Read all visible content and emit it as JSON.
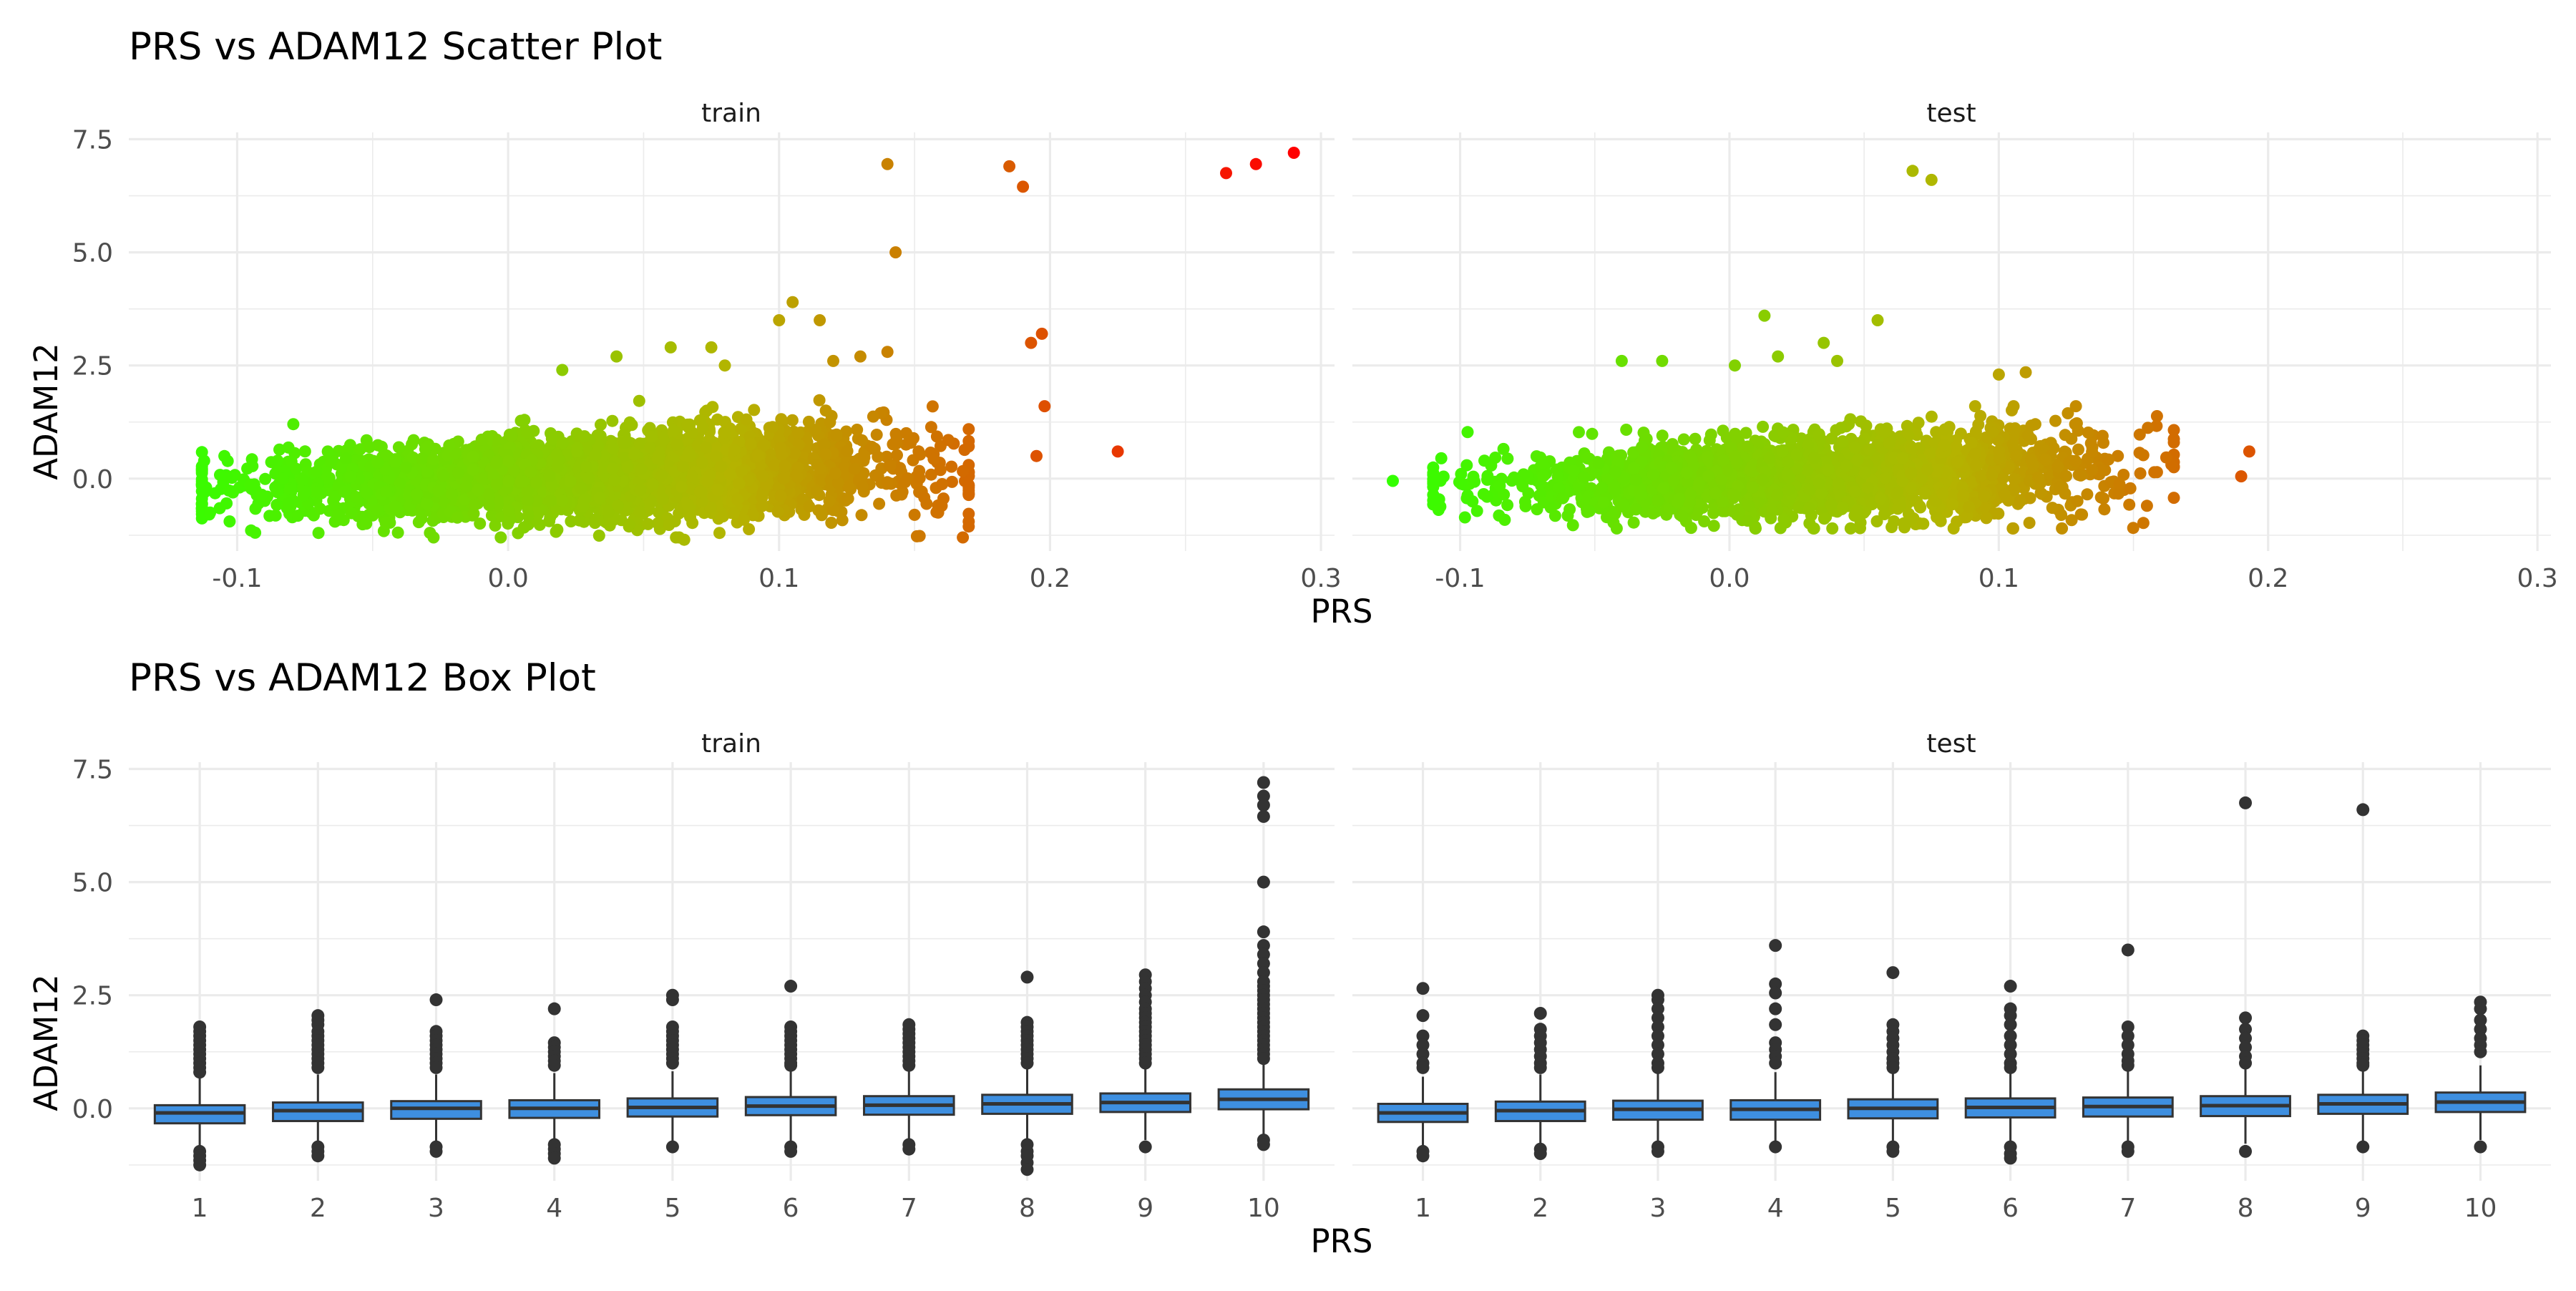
{
  "colors": {
    "low": "#33ff00",
    "mid": "#b4b400",
    "high": "#ff0000",
    "box_fill": "#3e8fe0",
    "box_line": "#333333",
    "grid": "#ebebeb"
  },
  "chart_data": [
    {
      "type": "scatter",
      "title": "PRS vs ADAM12 Scatter Plot",
      "xlabel": "PRS",
      "ylabel": "ADAM12",
      "facets": [
        "train",
        "test"
      ],
      "xlim": [
        -0.14,
        0.305
      ],
      "ylim": [
        -1.6,
        7.65
      ],
      "x_ticks": [
        -0.1,
        0.0,
        0.1,
        0.2,
        0.3
      ],
      "x_tick_labels": [
        "-0.1",
        "0.0",
        "0.1",
        "0.2",
        "0.3"
      ],
      "y_ticks": [
        0,
        2.5,
        5,
        7.5
      ],
      "y_tick_labels": [
        "0.0",
        "2.5",
        "5.0",
        "7.5"
      ],
      "color_scale": {
        "low": -0.125,
        "high": 0.29
      },
      "bulk": {
        "train": {
          "x_min": -0.113,
          "x_max": 0.17,
          "y_min": -1.3,
          "y_max": 2.0
        },
        "test": {
          "x_min": -0.11,
          "x_max": 0.165,
          "y_min": -1.1,
          "y_max": 1.6
        }
      },
      "points": {
        "train": [
          [
            0.29,
            7.2
          ],
          [
            0.276,
            6.95
          ],
          [
            0.265,
            6.75
          ],
          [
            0.14,
            6.95
          ],
          [
            0.185,
            6.9
          ],
          [
            0.19,
            6.45
          ],
          [
            0.143,
            5.0
          ],
          [
            0.197,
            3.2
          ],
          [
            0.193,
            3.0
          ],
          [
            0.198,
            1.6
          ],
          [
            0.225,
            0.6
          ],
          [
            0.195,
            0.5
          ],
          [
            0.105,
            3.9
          ],
          [
            0.1,
            3.5
          ],
          [
            0.115,
            3.5
          ],
          [
            0.14,
            2.8
          ],
          [
            0.13,
            2.7
          ],
          [
            0.075,
            2.9
          ],
          [
            0.06,
            2.9
          ],
          [
            0.04,
            2.7
          ],
          [
            0.08,
            2.5
          ],
          [
            0.02,
            2.4
          ],
          [
            0.12,
            2.6
          ],
          [
            -0.112,
            -0.3
          ],
          [
            -0.11,
            -0.75
          ],
          [
            -0.07,
            -1.2
          ],
          [
            0.065,
            -1.35
          ],
          [
            0.078,
            -1.2
          ],
          [
            0.15,
            -0.8
          ],
          [
            0.16,
            -0.6
          ]
        ],
        "test": [
          [
            -0.125,
            -0.05
          ],
          [
            -0.107,
            0.45
          ],
          [
            0.068,
            6.8
          ],
          [
            0.075,
            6.6
          ],
          [
            0.013,
            3.6
          ],
          [
            0.055,
            3.5
          ],
          [
            0.035,
            3.0
          ],
          [
            0.1,
            2.3
          ],
          [
            0.11,
            2.35
          ],
          [
            -0.04,
            2.6
          ],
          [
            -0.025,
            2.6
          ],
          [
            0.002,
            2.5
          ],
          [
            0.018,
            2.7
          ],
          [
            0.04,
            2.6
          ],
          [
            0.193,
            0.6
          ],
          [
            0.19,
            0.05
          ],
          [
            0.155,
            -0.6
          ],
          [
            0.165,
            0.8
          ],
          [
            -0.09,
            -0.4
          ],
          [
            0.065,
            -1.0
          ],
          [
            0.045,
            -1.1
          ]
        ]
      }
    },
    {
      "type": "box",
      "title": "PRS vs ADAM12 Box Plot",
      "xlabel": "PRS",
      "ylabel": "ADAM12",
      "facets": [
        "train",
        "test"
      ],
      "categories": [
        "1",
        "2",
        "3",
        "4",
        "5",
        "6",
        "7",
        "8",
        "9",
        "10"
      ],
      "ylim": [
        -1.6,
        7.65
      ],
      "y_ticks": [
        0,
        2.5,
        5,
        7.5
      ],
      "y_tick_labels": [
        "0.0",
        "2.5",
        "5.0",
        "7.5"
      ],
      "boxes": {
        "train": [
          {
            "q1": -0.33,
            "median": -0.1,
            "q3": 0.07,
            "low": -0.85,
            "high": 0.7,
            "outliers": [
              1.8,
              1.7,
              1.6,
              1.5,
              1.4,
              1.3,
              1.2,
              1.1,
              1.0,
              0.9,
              0.8,
              -0.95,
              -1.05,
              -1.15,
              -1.25
            ]
          },
          {
            "q1": -0.28,
            "median": -0.05,
            "q3": 0.13,
            "low": -0.78,
            "high": 0.75,
            "outliers": [
              2.05,
              1.95,
              1.85,
              1.7,
              1.6,
              1.5,
              1.4,
              1.3,
              1.2,
              1.1,
              1.0,
              0.9,
              -0.85,
              -0.95,
              -1.05
            ]
          },
          {
            "q1": -0.23,
            "median": 0.0,
            "q3": 0.16,
            "low": -0.8,
            "high": 0.75,
            "outliers": [
              2.4,
              1.7,
              1.6,
              1.5,
              1.4,
              1.3,
              1.2,
              1.1,
              1.0,
              0.9,
              -0.85,
              -0.95
            ]
          },
          {
            "q1": -0.21,
            "median": 0.0,
            "q3": 0.18,
            "low": -0.75,
            "high": 0.78,
            "outliers": [
              2.2,
              1.45,
              1.35,
              1.25,
              1.15,
              1.05,
              0.95,
              -0.8,
              -0.9,
              -1.0,
              -1.1
            ]
          },
          {
            "q1": -0.18,
            "median": 0.02,
            "q3": 0.22,
            "low": -0.75,
            "high": 0.82,
            "outliers": [
              2.5,
              2.4,
              1.8,
              1.7,
              1.6,
              1.5,
              1.4,
              1.3,
              1.2,
              1.1,
              1.0,
              -0.85
            ]
          },
          {
            "q1": -0.15,
            "median": 0.05,
            "q3": 0.25,
            "low": -0.75,
            "high": 0.85,
            "outliers": [
              2.7,
              1.8,
              1.7,
              1.6,
              1.5,
              1.4,
              1.3,
              1.2,
              1.1,
              1.0,
              0.95,
              -0.85,
              -0.95
            ]
          },
          {
            "q1": -0.14,
            "median": 0.07,
            "q3": 0.27,
            "low": -0.75,
            "high": 0.88,
            "outliers": [
              1.85,
              1.75,
              1.65,
              1.55,
              1.45,
              1.35,
              1.25,
              1.15,
              1.05,
              0.95,
              -0.8,
              -0.9
            ]
          },
          {
            "q1": -0.12,
            "median": 0.1,
            "q3": 0.3,
            "low": -0.72,
            "high": 0.9,
            "outliers": [
              2.9,
              1.9,
              1.8,
              1.7,
              1.6,
              1.5,
              1.4,
              1.3,
              1.2,
              1.1,
              1.0,
              -0.8,
              -0.95,
              -1.05,
              -1.2,
              -1.35
            ]
          },
          {
            "q1": -0.08,
            "median": 0.13,
            "q3": 0.33,
            "low": -0.7,
            "high": 0.93,
            "outliers": [
              2.95,
              2.8,
              2.65,
              2.5,
              2.35,
              2.2,
              2.1,
              2.0,
              1.9,
              1.8,
              1.7,
              1.6,
              1.5,
              1.4,
              1.3,
              1.2,
              1.1,
              1.0,
              -0.85
            ]
          },
          {
            "q1": -0.02,
            "median": 0.2,
            "q3": 0.42,
            "low": -0.68,
            "high": 1.05,
            "outliers": [
              7.2,
              6.9,
              6.7,
              6.45,
              5.0,
              3.9,
              3.6,
              3.4,
              3.2,
              3.0,
              2.8,
              2.7,
              2.6,
              2.5,
              2.4,
              2.3,
              2.2,
              2.1,
              2.0,
              1.9,
              1.8,
              1.7,
              1.6,
              1.5,
              1.4,
              1.3,
              1.2,
              1.1,
              -0.7,
              -0.8
            ]
          }
        ],
        "test": [
          {
            "q1": -0.3,
            "median": -0.1,
            "q3": 0.1,
            "low": -0.9,
            "high": 0.7,
            "outliers": [
              2.65,
              2.05,
              1.6,
              1.4,
              1.2,
              1.0,
              0.9,
              -0.95,
              -1.05
            ]
          },
          {
            "q1": -0.28,
            "median": -0.05,
            "q3": 0.15,
            "low": -0.85,
            "high": 0.75,
            "outliers": [
              2.1,
              1.75,
              1.6,
              1.45,
              1.3,
              1.15,
              1.0,
              0.9,
              -0.9,
              -1.0
            ]
          },
          {
            "q1": -0.25,
            "median": -0.02,
            "q3": 0.17,
            "low": -0.8,
            "high": 0.78,
            "outliers": [
              2.5,
              2.4,
              2.2,
              2.0,
              1.8,
              1.6,
              1.4,
              1.2,
              1.0,
              0.9,
              -0.85,
              -0.95
            ]
          },
          {
            "q1": -0.25,
            "median": -0.02,
            "q3": 0.18,
            "low": -0.8,
            "high": 0.8,
            "outliers": [
              3.6,
              2.75,
              2.55,
              2.2,
              1.85,
              1.45,
              1.3,
              1.15,
              1.0,
              -0.85
            ]
          },
          {
            "q1": -0.22,
            "median": 0.0,
            "q3": 0.2,
            "low": -0.8,
            "high": 0.8,
            "outliers": [
              3.0,
              1.85,
              1.7,
              1.55,
              1.4,
              1.25,
              1.1,
              1.0,
              0.9,
              -0.85,
              -0.95
            ]
          },
          {
            "q1": -0.2,
            "median": 0.02,
            "q3": 0.22,
            "low": -0.78,
            "high": 0.82,
            "outliers": [
              2.7,
              2.2,
              2.05,
              1.85,
              1.6,
              1.4,
              1.2,
              1.0,
              0.9,
              -0.85,
              -1.0,
              -1.1
            ]
          },
          {
            "q1": -0.18,
            "median": 0.04,
            "q3": 0.24,
            "low": -0.78,
            "high": 0.84,
            "outliers": [
              3.5,
              1.8,
              1.6,
              1.4,
              1.2,
              1.05,
              0.95,
              -0.85,
              -0.95
            ]
          },
          {
            "q1": -0.17,
            "median": 0.06,
            "q3": 0.27,
            "low": -0.78,
            "high": 0.86,
            "outliers": [
              6.75,
              2.0,
              1.75,
              1.55,
              1.35,
              1.15,
              1.0,
              -0.95
            ]
          },
          {
            "q1": -0.12,
            "median": 0.1,
            "q3": 0.3,
            "low": -0.72,
            "high": 0.9,
            "outliers": [
              6.6,
              1.6,
              1.5,
              1.4,
              1.3,
              1.2,
              1.1,
              1.0,
              0.95,
              -0.85
            ]
          },
          {
            "q1": -0.08,
            "median": 0.14,
            "q3": 0.35,
            "low": -0.7,
            "high": 0.95,
            "outliers": [
              2.35,
              2.2,
              1.95,
              1.75,
              1.55,
              1.4,
              1.25,
              -0.85
            ]
          }
        ]
      }
    }
  ]
}
